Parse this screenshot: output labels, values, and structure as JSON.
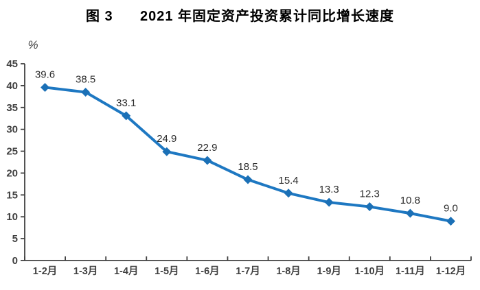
{
  "chart_data": {
    "type": "line",
    "title": "图 3      2021 年固定资产投资累计同比增长速度",
    "y_unit_label": "%",
    "categories": [
      "1-2月",
      "1-3月",
      "1-4月",
      "1-5月",
      "1-6月",
      "1-7月",
      "1-8月",
      "1-9月",
      "1-10月",
      "1-11月",
      "1-12月"
    ],
    "values": [
      39.6,
      38.5,
      33.1,
      24.9,
      22.9,
      18.5,
      15.4,
      13.3,
      12.3,
      10.8,
      9.0
    ],
    "data_labels": [
      "39.6",
      "38.5",
      "33.1",
      "24.9",
      "22.9",
      "18.5",
      "15.4",
      "13.3",
      "12.3",
      "10.8",
      "9.0"
    ],
    "ylim": [
      0,
      45
    ],
    "yticks": [
      0,
      5,
      10,
      15,
      20,
      25,
      30,
      35,
      40,
      45
    ],
    "xlabel": "",
    "grid": false,
    "legend": "none",
    "marker": "diamond",
    "colors": {
      "line": "#1E78C2",
      "marker": "#1B70B6",
      "axis": "#404040",
      "tick_label": "#404040",
      "data_label": "#2b2b2b",
      "title": "#000000",
      "background": "#ffffff"
    }
  }
}
